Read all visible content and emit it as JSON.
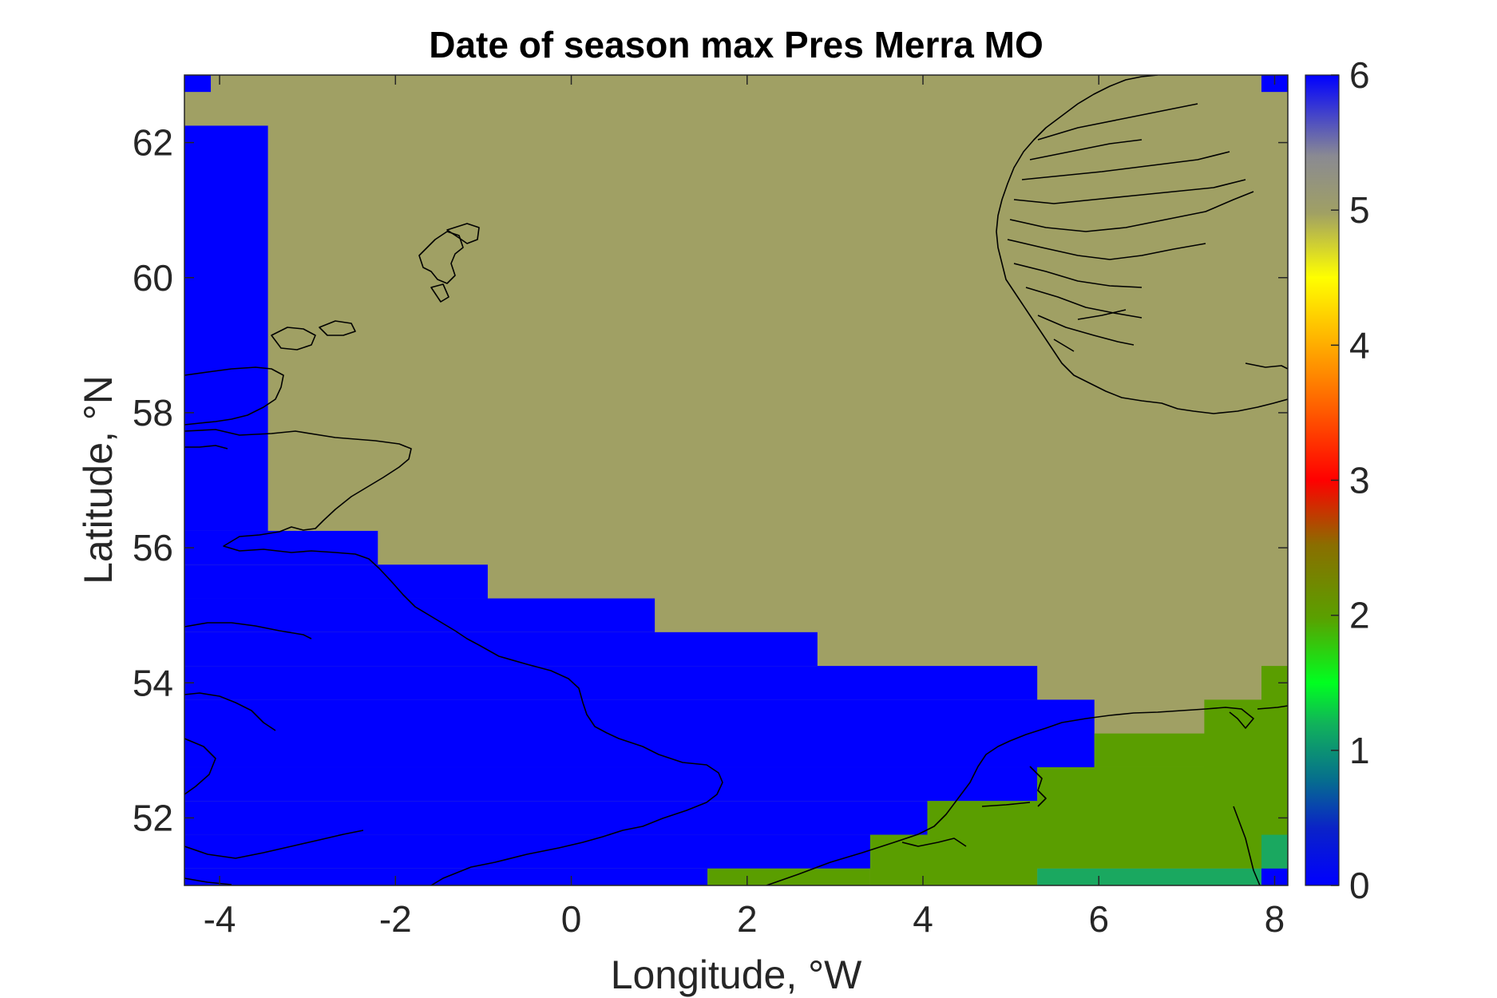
{
  "chart_data": {
    "type": "heatmap",
    "title": "Date of season max Pres Merra MO",
    "xlabel": "Longitude, °W",
    "ylabel": "Latitude, °N",
    "xlim": [
      -4.4,
      8.15
    ],
    "ylim": [
      51.0,
      63.0
    ],
    "xticks": [
      -4,
      -2,
      0,
      2,
      4,
      6,
      8
    ],
    "yticks": [
      52,
      54,
      56,
      58,
      60,
      62
    ],
    "grid": false,
    "colorbar": {
      "location": "right",
      "clim": [
        0,
        6
      ],
      "ticks": [
        0,
        1,
        2,
        3,
        4,
        5,
        6
      ],
      "colormap": "custom blue-green-yellow-red-olive-blue"
    },
    "background_value": 5.0,
    "background_color": "#a0a064",
    "regions": [
      {
        "lon": [
          -4.4,
          -4.1
        ],
        "lat": [
          62.75,
          63.0
        ],
        "value": 6,
        "color": "#0000ff"
      },
      {
        "lon": [
          7.85,
          8.15
        ],
        "lat": [
          62.75,
          63.0
        ],
        "value": 6,
        "color": "#0000ff"
      },
      {
        "lon": [
          -4.4,
          -3.45
        ],
        "lat": [
          56.25,
          62.25
        ],
        "value": 6,
        "color": "#0000ff"
      },
      {
        "lon": [
          -4.4,
          -2.2
        ],
        "lat": [
          55.75,
          56.25
        ],
        "value": 6,
        "color": "#0000ff"
      },
      {
        "lon": [
          -4.4,
          -0.95
        ],
        "lat": [
          55.25,
          55.75
        ],
        "value": 6,
        "color": "#0000ff"
      },
      {
        "lon": [
          -4.4,
          0.95
        ],
        "lat": [
          54.75,
          55.25
        ],
        "value": 6,
        "color": "#0000ff"
      },
      {
        "lon": [
          -4.4,
          2.8
        ],
        "lat": [
          54.25,
          54.75
        ],
        "value": 6,
        "color": "#0000ff"
      },
      {
        "lon": [
          -4.4,
          5.3
        ],
        "lat": [
          53.75,
          54.25
        ],
        "value": 6,
        "color": "#0000ff"
      },
      {
        "lon": [
          -4.4,
          5.95
        ],
        "lat": [
          52.75,
          53.75
        ],
        "value": 6,
        "color": "#0000ff"
      },
      {
        "lon": [
          -4.4,
          5.3
        ],
        "lat": [
          52.25,
          52.75
        ],
        "value": 6,
        "color": "#0000ff"
      },
      {
        "lon": [
          -4.4,
          4.05
        ],
        "lat": [
          51.75,
          52.25
        ],
        "value": 6,
        "color": "#0000ff"
      },
      {
        "lon": [
          -4.4,
          3.4
        ],
        "lat": [
          51.25,
          51.75
        ],
        "value": 6,
        "color": "#0000ff"
      },
      {
        "lon": [
          -4.4,
          1.55
        ],
        "lat": [
          51.0,
          51.25
        ],
        "value": 6,
        "color": "#0000ff"
      },
      {
        "lon": [
          7.85,
          8.15
        ],
        "lat": [
          53.25,
          54.25
        ],
        "value": 2,
        "color": "#5a9e00"
      },
      {
        "lon": [
          7.2,
          8.15
        ],
        "lat": [
          52.75,
          53.75
        ],
        "value": 2,
        "color": "#5a9e00"
      },
      {
        "lon": [
          5.95,
          8.15
        ],
        "lat": [
          52.75,
          53.25
        ],
        "value": 2,
        "color": "#5a9e00"
      },
      {
        "lon": [
          5.3,
          8.15
        ],
        "lat": [
          51.75,
          52.75
        ],
        "value": 2,
        "color": "#5a9e00"
      },
      {
        "lon": [
          4.05,
          8.15
        ],
        "lat": [
          51.25,
          52.25
        ],
        "value": 2,
        "color": "#5a9e00"
      },
      {
        "lon": [
          3.4,
          5.3
        ],
        "lat": [
          51.0,
          51.75
        ],
        "value": 2,
        "color": "#5a9e00"
      },
      {
        "lon": [
          1.55,
          3.4
        ],
        "lat": [
          51.0,
          51.25
        ],
        "value": 2,
        "color": "#5a9e00"
      },
      {
        "lon": [
          5.3,
          7.85
        ],
        "lat": [
          51.0,
          51.25
        ],
        "value": 1.2,
        "color": "#1aa860"
      },
      {
        "lon": [
          7.85,
          8.15
        ],
        "lat": [
          51.25,
          51.75
        ],
        "value": 1.2,
        "color": "#1aa860"
      },
      {
        "lon": [
          7.85,
          8.15
        ],
        "lat": [
          51.0,
          51.25
        ],
        "value": 6,
        "color": "#0000ff"
      }
    ]
  }
}
